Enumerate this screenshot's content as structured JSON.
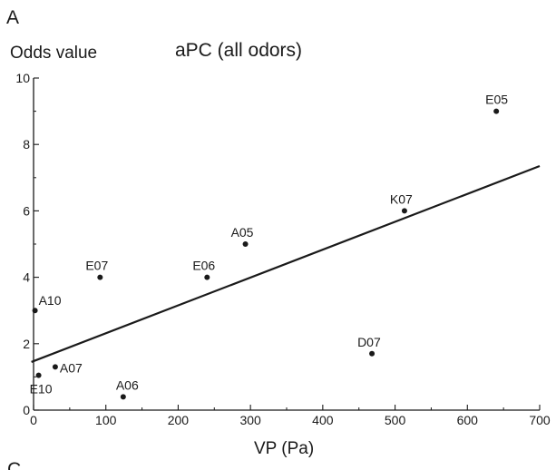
{
  "figure": {
    "panel_letter": "A",
    "next_panel_letter": "C"
  },
  "chart_data": {
    "type": "scatter",
    "title": "aPC (all odors)",
    "xlabel": "VP (Pa)",
    "ylabel": "Odds value",
    "xlim": [
      0,
      700
    ],
    "ylim": [
      0,
      10
    ],
    "x_ticks": [
      0,
      100,
      200,
      300,
      400,
      500,
      600,
      700
    ],
    "y_ticks": [
      0,
      2,
      4,
      6,
      8,
      10
    ],
    "grid": false,
    "legend": "none",
    "series": [
      {
        "points": [
          {
            "label": "E05",
            "x": 640,
            "y": 9.0
          },
          {
            "label": "K07",
            "x": 513,
            "y": 6.0
          },
          {
            "label": "A05",
            "x": 293,
            "y": 5.0
          },
          {
            "label": "E06",
            "x": 240,
            "y": 4.0
          },
          {
            "label": "E07",
            "x": 92,
            "y": 4.0
          },
          {
            "label": "A10",
            "x": 2,
            "y": 3.0
          },
          {
            "label": "D07",
            "x": 468,
            "y": 1.7
          },
          {
            "label": "A07",
            "x": 30,
            "y": 1.3
          },
          {
            "label": "E10",
            "x": 7,
            "y": 1.05
          },
          {
            "label": "A06",
            "x": 124,
            "y": 0.4
          }
        ]
      }
    ],
    "trendline": {
      "x_start": -3,
      "y_start": 1.45,
      "x_end": 700,
      "y_end": 7.35
    }
  }
}
